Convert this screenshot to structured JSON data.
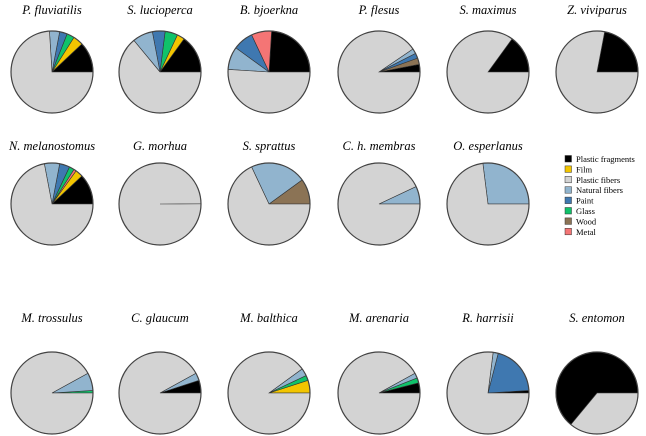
{
  "chart_data": {
    "type": "pie",
    "categories": [
      "Plastic fragments",
      "Film",
      "Plastic fibers",
      "Natural fibers",
      "Paint",
      "Glass",
      "Wood",
      "Metal"
    ],
    "colors": {
      "Plastic fragments": "#000000",
      "Film": "#f2c500",
      "Plastic fibers": "#d3d3d3",
      "Natural fibers": "#91b4ce",
      "Paint": "#3f78b0",
      "Glass": "#10c26a",
      "Wood": "#8b7355",
      "Metal": "#f47575"
    },
    "legend": {
      "placement": "right",
      "items": [
        {
          "label": "Plastic fragments",
          "color": "#000000"
        },
        {
          "label": "Film",
          "color": "#f2c500"
        },
        {
          "label": "Plastic fibers",
          "color": "#d3d3d3"
        },
        {
          "label": "Natural fibers",
          "color": "#91b4ce"
        },
        {
          "label": "Paint",
          "color": "#3f78b0"
        },
        {
          "label": "Glass",
          "color": "#10c26a"
        },
        {
          "label": "Wood",
          "color": "#8b7355"
        },
        {
          "label": "Metal",
          "color": "#f47575"
        }
      ]
    },
    "pies": [
      {
        "title": "P. fluviatilis",
        "slices": [
          {
            "category": "Plastic fragments",
            "value": 0.12
          },
          {
            "category": "Film",
            "value": 0.04
          },
          {
            "category": "Glass",
            "value": 0.03
          },
          {
            "category": "Paint",
            "value": 0.03
          },
          {
            "category": "Natural fibers",
            "value": 0.04
          },
          {
            "category": "Plastic fibers",
            "value": 0.74
          }
        ]
      },
      {
        "title": "S. lucioperca",
        "slices": [
          {
            "category": "Plastic fragments",
            "value": 0.15
          },
          {
            "category": "Film",
            "value": 0.03
          },
          {
            "category": "Glass",
            "value": 0.05
          },
          {
            "category": "Paint",
            "value": 0.05
          },
          {
            "category": "Natural fibers",
            "value": 0.08
          },
          {
            "category": "Plastic fibers",
            "value": 0.64
          }
        ]
      },
      {
        "title": "B. bjoerkna",
        "slices": [
          {
            "category": "Plastic fragments",
            "value": 0.24
          },
          {
            "category": "Metal",
            "value": 0.08
          },
          {
            "category": "Paint",
            "value": 0.08
          },
          {
            "category": "Natural fibers",
            "value": 0.09
          },
          {
            "category": "Plastic fibers",
            "value": 0.51
          }
        ]
      },
      {
        "title": "P. flesus",
        "slices": [
          {
            "category": "Plastic fragments",
            "value": 0.03
          },
          {
            "category": "Wood",
            "value": 0.025
          },
          {
            "category": "Paint",
            "value": 0.02
          },
          {
            "category": "Natural fibers",
            "value": 0.02
          },
          {
            "category": "Plastic fibers",
            "value": 0.905
          }
        ]
      },
      {
        "title": "S. maximus",
        "slices": [
          {
            "category": "Plastic fragments",
            "value": 0.15
          },
          {
            "category": "Plastic fibers",
            "value": 0.85
          }
        ]
      },
      {
        "title": "Z. viviparus",
        "slices": [
          {
            "category": "Plastic fragments",
            "value": 0.22
          },
          {
            "category": "Plastic fibers",
            "value": 0.78
          }
        ]
      },
      {
        "title": "N. melanostomus",
        "slices": [
          {
            "category": "Plastic fragments",
            "value": 0.12
          },
          {
            "category": "Film",
            "value": 0.03
          },
          {
            "category": "Metal",
            "value": 0.01
          },
          {
            "category": "Glass",
            "value": 0.02
          },
          {
            "category": "Paint",
            "value": 0.04
          },
          {
            "category": "Natural fibers",
            "value": 0.06
          },
          {
            "category": "Plastic fibers",
            "value": 0.72
          }
        ]
      },
      {
        "title": "G. morhua",
        "slices": [
          {
            "category": "Natural fibers",
            "value": 0.001
          },
          {
            "category": "Plastic fibers",
            "value": 0.999
          }
        ]
      },
      {
        "title": "S. sprattus",
        "slices": [
          {
            "category": "Wood",
            "value": 0.1
          },
          {
            "category": "Natural fibers",
            "value": 0.22
          },
          {
            "category": "Plastic fibers",
            "value": 0.68
          }
        ]
      },
      {
        "title": "C. h. membras",
        "slices": [
          {
            "category": "Natural fibers",
            "value": 0.07
          },
          {
            "category": "Plastic fibers",
            "value": 0.93
          }
        ]
      },
      {
        "title": "O. esperlanus",
        "slices": [
          {
            "category": "Natural fibers",
            "value": 0.27
          },
          {
            "category": "Plastic fibers",
            "value": 0.73
          }
        ]
      },
      {
        "title": "M. trossulus",
        "slices": [
          {
            "category": "Glass",
            "value": 0.01
          },
          {
            "category": "Natural fibers",
            "value": 0.07
          },
          {
            "category": "Plastic fibers",
            "value": 0.92
          }
        ]
      },
      {
        "title": "C. glaucum",
        "slices": [
          {
            "category": "Plastic fragments",
            "value": 0.05
          },
          {
            "category": "Natural fibers",
            "value": 0.03
          },
          {
            "category": "Plastic fibers",
            "value": 0.92
          }
        ]
      },
      {
        "title": "M. balthica",
        "slices": [
          {
            "category": "Film",
            "value": 0.05
          },
          {
            "category": "Glass",
            "value": 0.02
          },
          {
            "category": "Natural fibers",
            "value": 0.03
          },
          {
            "category": "Plastic fibers",
            "value": 0.9
          }
        ]
      },
      {
        "title": "M. arenaria",
        "slices": [
          {
            "category": "Plastic fragments",
            "value": 0.04
          },
          {
            "category": "Glass",
            "value": 0.02
          },
          {
            "category": "Natural fibers",
            "value": 0.02
          },
          {
            "category": "Plastic fibers",
            "value": 0.92
          }
        ]
      },
      {
        "title": "R. harrisii",
        "slices": [
          {
            "category": "Plastic fragments",
            "value": 0.01
          },
          {
            "category": "Paint",
            "value": 0.2
          },
          {
            "category": "Natural fibers",
            "value": 0.02
          },
          {
            "category": "Plastic fibers",
            "value": 0.77
          }
        ]
      },
      {
        "title": "S. entomon",
        "slices": [
          {
            "category": "Plastic fragments",
            "value": 0.64
          },
          {
            "category": "Plastic fibers",
            "value": 0.36
          }
        ]
      }
    ]
  }
}
